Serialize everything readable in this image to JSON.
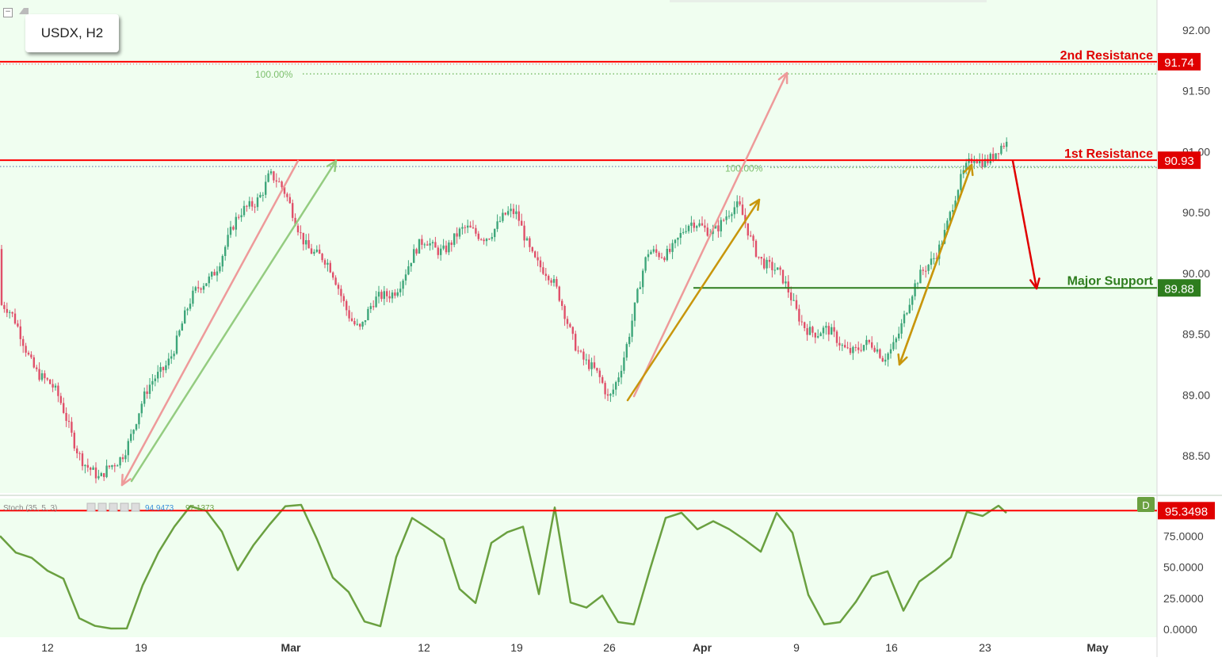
{
  "symbol_label": "USDX, H2",
  "colors": {
    "background": "#f0fef0",
    "up_candle": "#3ea67a",
    "down_candle": "#e0506a",
    "resistance": "#ff0000",
    "support": "#2e7d1e",
    "fib_dotted": "#7cbf6c",
    "stoch_line": "#6aa040",
    "arrow_pink": "#ee9a9a",
    "arrow_green": "#94cc80",
    "arrow_gold": "#c8960c"
  },
  "levels": {
    "second_resistance": {
      "label": "2nd Resistance",
      "price": "91.74"
    },
    "first_resistance": {
      "label": "1st Resistance",
      "price": "90.93"
    },
    "major_support": {
      "label": "Major Support",
      "price": "89.88"
    }
  },
  "fib_labels": [
    "100.00%",
    "100.00%"
  ],
  "stoch": {
    "label": "Stoch (35, 5, 3)",
    "values": [
      "94.9473",
      "97.1373"
    ],
    "current": "95.3498",
    "badge": "D"
  },
  "chart_data": {
    "type": "candlestick",
    "title": "USDX, H2",
    "ylim": [
      88.15,
      92.25
    ],
    "y_ticks": [
      "92.00",
      "91.50",
      "91.00",
      "90.50",
      "90.00",
      "89.50",
      "89.00",
      "88.50"
    ],
    "x_ticks": [
      "12",
      "19",
      "Mar",
      "12",
      "19",
      "26",
      "Apr",
      "9",
      "16",
      "23",
      "May"
    ],
    "key_points": [
      {
        "date": "Feb 6",
        "price": 90.2
      },
      {
        "date": "Feb 16",
        "price": 88.27
      },
      {
        "date": "Mar 1",
        "price": 90.88
      },
      {
        "date": "Mar 8",
        "price": 89.5
      },
      {
        "date": "Mar 13",
        "price": 90.28
      },
      {
        "date": "Mar 20",
        "price": 90.4
      },
      {
        "date": "Mar 27",
        "price": 88.98
      },
      {
        "date": "Mar 30",
        "price": 90.1
      },
      {
        "date": "Apr 6",
        "price": 90.52
      },
      {
        "date": "Apr 12",
        "price": 89.45
      },
      {
        "date": "Apr 17",
        "price": 89.3
      },
      {
        "date": "Apr 24",
        "price": 90.95
      }
    ],
    "stoch_ylim": [
      0,
      100
    ],
    "stoch_ticks": [
      "75.0000",
      "50.0000",
      "25.0000",
      "0.0000"
    ]
  }
}
